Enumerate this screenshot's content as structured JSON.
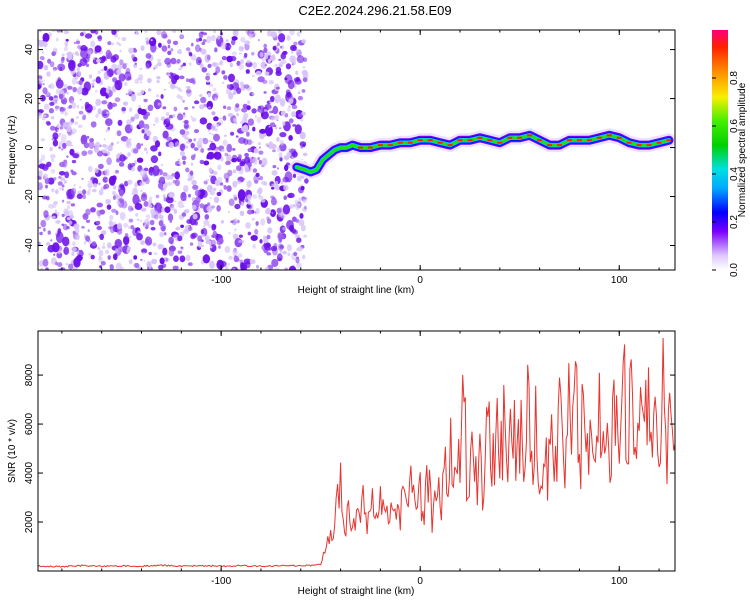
{
  "title": "C2E2.2024.296.21.58.E09",
  "colors": {
    "snr_line": "#e8342f",
    "cloud_dark": "#6a0dea",
    "cloud_mid": "#9b5bf0",
    "cloud_light": "#d6c2f8"
  },
  "chart_data": [
    {
      "type": "heatmap",
      "xlabel": "Height of straight line (km)",
      "ylabel": "Frequency (Hz)",
      "xlim": [
        -192,
        128
      ],
      "ylim": [
        -50,
        48
      ],
      "xticks": [
        -100,
        0,
        100
      ],
      "yticks": [
        -40,
        -20,
        0,
        20,
        40
      ],
      "grid": false,
      "noise_region_x": [
        -192,
        -57
      ],
      "trace": {
        "x": [
          -62,
          -58,
          -55,
          -52,
          -49,
          -46,
          -43,
          -40,
          -37,
          -34,
          -30,
          -25,
          -20,
          -15,
          -10,
          -5,
          0,
          5,
          10,
          15,
          20,
          25,
          30,
          35,
          40,
          45,
          50,
          55,
          60,
          65,
          70,
          75,
          80,
          85,
          90,
          95,
          100,
          105,
          110,
          115,
          120,
          125
        ],
        "y": [
          -8,
          -9,
          -10,
          -9,
          -5,
          -3,
          -1,
          0,
          0,
          1,
          0,
          0,
          1,
          1,
          2,
          2,
          3,
          3,
          2,
          1,
          3,
          3,
          4,
          3,
          2,
          4,
          4,
          5,
          3,
          1,
          1,
          3,
          3,
          3,
          4,
          5,
          4,
          2,
          1,
          1,
          2,
          3
        ]
      },
      "colorbar": {
        "label": "Normalized spectral amplitude",
        "ticks": [
          "0.0",
          "0.2",
          "0.4",
          "0.6",
          "0.8"
        ],
        "range": [
          0,
          1
        ]
      }
    },
    {
      "type": "line",
      "xlabel": "Height of straight line (km)",
      "ylabel": "SNR (10 * v/v)",
      "xlim": [
        -192,
        128
      ],
      "ylim": [
        0,
        9800
      ],
      "xticks": [
        -100,
        0,
        100
      ],
      "yticks": [
        2000,
        4000,
        6000,
        8000
      ],
      "grid": false,
      "series": [
        {
          "x": [
            -192,
            -180,
            -170,
            -160,
            -150,
            -140,
            -130,
            -120,
            -110,
            -100,
            -90,
            -80,
            -70,
            -60,
            -55,
            -50,
            -45,
            -43,
            -40,
            -38,
            -36,
            -34,
            -32,
            -30,
            -28,
            -26,
            -24,
            -22,
            -20,
            -18,
            -16,
            -14,
            -12,
            -10,
            -8,
            -6,
            -4,
            -2,
            0,
            2,
            4,
            6,
            8,
            10,
            12,
            14,
            16,
            18,
            20,
            22,
            24,
            26,
            28,
            30,
            32,
            34,
            36,
            38,
            40,
            42,
            44,
            46,
            48,
            50,
            52,
            54,
            56,
            58,
            60,
            62,
            64,
            66,
            68,
            70,
            72,
            74,
            76,
            78,
            80,
            82,
            84,
            86,
            88,
            90,
            92,
            94,
            96,
            98,
            100,
            102,
            104,
            106,
            108,
            110,
            112,
            114,
            116,
            118,
            120,
            122,
            124,
            126,
            128
          ],
          "y": [
            200,
            180,
            220,
            190,
            210,
            200,
            230,
            190,
            220,
            200,
            210,
            190,
            220,
            200,
            230,
            280,
            1400,
            2300,
            3300,
            1500,
            2500,
            1700,
            2800,
            2000,
            3300,
            1800,
            2600,
            2100,
            3300,
            1900,
            2700,
            2200,
            3200,
            2300,
            3000,
            2300,
            3700,
            2500,
            3000,
            2500,
            4200,
            2300,
            4000,
            2400,
            3700,
            4500,
            5300,
            3300,
            4900,
            6900,
            2600,
            5200,
            3500,
            4800,
            2900,
            6800,
            3600,
            5600,
            4500,
            6200,
            3200,
            7100,
            4300,
            6100,
            3500,
            6800,
            4100,
            6300,
            4700,
            5400,
            3600,
            6300,
            4500,
            7100,
            3900,
            6700,
            5600,
            7600,
            4400,
            6500,
            5100,
            6900,
            3900,
            7500,
            4700,
            6200,
            5000,
            7200,
            4600,
            8200,
            5000,
            7200,
            4200,
            6600,
            5300,
            7000,
            4800,
            6900,
            5500,
            7600,
            5000,
            7200,
            5200
          ]
        }
      ]
    }
  ]
}
